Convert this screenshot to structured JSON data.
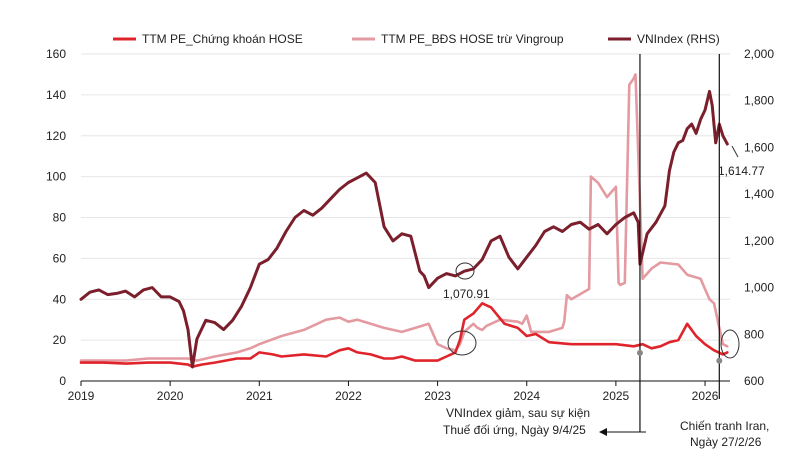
{
  "colors": {
    "pe_hose": "#e0242b",
    "pe_bds": "#e39aa0",
    "vnindex": "#7a1f2b",
    "grid": "#e6e6e6",
    "axis": "#111111",
    "marker": "#888888"
  },
  "legend": {
    "pe_hose": "TTM PE_Chứng khoán HOSE",
    "pe_bds": "TTM PE_BĐS HOSE trừ Vingroup",
    "vnindex": "VNIndex (RHS)"
  },
  "annotations": {
    "low_value": "1,070.91",
    "last_value": "1,614.77",
    "event1_line1": "VNIndex giảm, sau sự kiện",
    "event1_line2": "Thuế đối ứng, Ngày 9/4/25",
    "event2_line1": "Chiến tranh Iran,",
    "event2_line2": "Ngày 27/2/26"
  },
  "chart_data": {
    "type": "line",
    "x_ticks": [
      "2019",
      "2020",
      "2021",
      "2022",
      "2023",
      "2024",
      "2025",
      "2026"
    ],
    "xlim": [
      2019.0,
      2026.28
    ],
    "y_left_ticks": [
      "0",
      "20",
      "40",
      "60",
      "80",
      "100",
      "120",
      "140",
      "160"
    ],
    "y_left_lim": [
      0,
      160
    ],
    "y_right_ticks": [
      "600",
      "800",
      "1,000",
      "1,200",
      "1,400",
      "1,600",
      "1,800",
      "2,000"
    ],
    "y_right_lim": [
      600,
      2000
    ],
    "grid": true,
    "legend_position": "top",
    "event_dates": [
      2025.27,
      2026.16
    ],
    "series": [
      {
        "name": "TTM PE_Chứng khoán HOSE",
        "axis": "left",
        "x": [
          2019.0,
          2019.25,
          2019.5,
          2019.75,
          2020.0,
          2020.2,
          2020.25,
          2020.35,
          2020.5,
          2020.75,
          2020.9,
          2021.0,
          2021.15,
          2021.25,
          2021.5,
          2021.75,
          2021.9,
          2022.0,
          2022.1,
          2022.25,
          2022.4,
          2022.5,
          2022.6,
          2022.75,
          2022.9,
          2023.0,
          2023.1,
          2023.2,
          2023.25,
          2023.3,
          2023.4,
          2023.5,
          2023.6,
          2023.75,
          2023.9,
          2024.0,
          2024.1,
          2024.25,
          2024.5,
          2024.75,
          2025.0,
          2025.2,
          2025.3,
          2025.4,
          2025.5,
          2025.6,
          2025.7,
          2025.75,
          2025.8,
          2025.9,
          2026.0,
          2026.1,
          2026.2,
          2026.25
        ],
        "y": [
          9,
          9,
          8.5,
          9,
          9,
          8,
          7,
          8,
          9,
          11,
          11,
          14,
          13,
          12,
          13,
          12,
          15,
          16,
          14,
          13,
          11,
          11,
          12,
          10,
          10,
          10,
          12,
          14,
          20,
          30,
          33,
          38,
          36,
          28,
          26,
          22,
          23,
          19,
          18,
          18,
          18,
          17,
          18,
          16,
          17,
          19,
          20,
          24,
          28,
          22,
          18,
          15,
          13,
          14
        ]
      },
      {
        "name": "TTM PE_BĐS HOSE trừ Vingroup",
        "axis": "left",
        "x": [
          2019.0,
          2019.5,
          2019.75,
          2020.0,
          2020.2,
          2020.3,
          2020.5,
          2020.75,
          2020.9,
          2021.0,
          2021.25,
          2021.5,
          2021.75,
          2021.9,
          2022.0,
          2022.1,
          2022.25,
          2022.4,
          2022.5,
          2022.6,
          2022.75,
          2022.9,
          2023.0,
          2023.1,
          2023.2,
          2023.25,
          2023.3,
          2023.4,
          2023.45,
          2023.5,
          2023.55,
          2023.6,
          2023.7,
          2023.9,
          2023.95,
          2024.0,
          2024.05,
          2024.25,
          2024.4,
          2024.42,
          2024.45,
          2024.5,
          2024.7,
          2024.72,
          2024.8,
          2024.9,
          2025.0,
          2025.03,
          2025.05,
          2025.1,
          2025.15,
          2025.2,
          2025.22,
          2025.3,
          2025.4,
          2025.5,
          2025.7,
          2025.8,
          2025.95,
          2026.0,
          2026.05,
          2026.1,
          2026.2,
          2026.25
        ],
        "y": [
          10,
          10,
          11,
          11,
          11,
          10,
          12,
          14,
          16,
          18,
          22,
          25,
          30,
          31,
          29,
          30,
          28,
          26,
          25,
          24,
          26,
          28,
          18,
          16,
          15,
          18,
          24,
          28,
          26,
          25,
          27,
          28,
          30,
          29,
          28,
          32,
          24,
          24,
          26,
          29,
          42,
          40,
          45,
          100,
          97,
          90,
          95,
          48,
          47,
          48,
          145,
          148,
          150,
          50,
          55,
          58,
          57,
          52,
          50,
          45,
          40,
          38,
          18,
          17
        ]
      },
      {
        "name": "VNIndex (RHS)",
        "axis": "right",
        "x": [
          2019.0,
          2019.1,
          2019.2,
          2019.3,
          2019.4,
          2019.5,
          2019.6,
          2019.7,
          2019.8,
          2019.9,
          2020.0,
          2020.1,
          2020.15,
          2020.2,
          2020.25,
          2020.3,
          2020.4,
          2020.5,
          2020.6,
          2020.7,
          2020.8,
          2020.9,
          2021.0,
          2021.1,
          2021.2,
          2021.3,
          2021.4,
          2021.5,
          2021.6,
          2021.7,
          2021.8,
          2021.9,
          2022.0,
          2022.1,
          2022.2,
          2022.3,
          2022.4,
          2022.5,
          2022.6,
          2022.7,
          2022.8,
          2022.85,
          2022.9,
          2023.0,
          2023.1,
          2023.2,
          2023.3,
          2023.4,
          2023.5,
          2023.6,
          2023.7,
          2023.8,
          2023.9,
          2024.0,
          2024.1,
          2024.2,
          2024.3,
          2024.4,
          2024.5,
          2024.6,
          2024.7,
          2024.8,
          2024.9,
          2025.0,
          2025.1,
          2025.2,
          2025.25,
          2025.27,
          2025.35,
          2025.45,
          2025.55,
          2025.6,
          2025.65,
          2025.7,
          2025.75,
          2025.8,
          2025.85,
          2025.9,
          2025.95,
          2026.0,
          2026.05,
          2026.08,
          2026.12,
          2026.16,
          2026.2,
          2026.25
        ],
        "y": [
          950,
          980,
          990,
          970,
          975,
          985,
          960,
          990,
          1000,
          960,
          960,
          940,
          900,
          820,
          660,
          780,
          860,
          850,
          820,
          860,
          920,
          1000,
          1100,
          1120,
          1170,
          1240,
          1300,
          1330,
          1310,
          1340,
          1380,
          1420,
          1450,
          1470,
          1490,
          1450,
          1260,
          1200,
          1230,
          1220,
          1070,
          1050,
          1000,
          1040,
          1060,
          1050,
          1070,
          1080,
          1120,
          1200,
          1220,
          1130,
          1080,
          1130,
          1180,
          1240,
          1260,
          1240,
          1270,
          1280,
          1250,
          1270,
          1230,
          1270,
          1300,
          1320,
          1280,
          1100,
          1230,
          1280,
          1350,
          1500,
          1580,
          1620,
          1630,
          1680,
          1700,
          1660,
          1720,
          1760,
          1840,
          1780,
          1620,
          1700,
          1650,
          1614.77
        ]
      }
    ]
  }
}
